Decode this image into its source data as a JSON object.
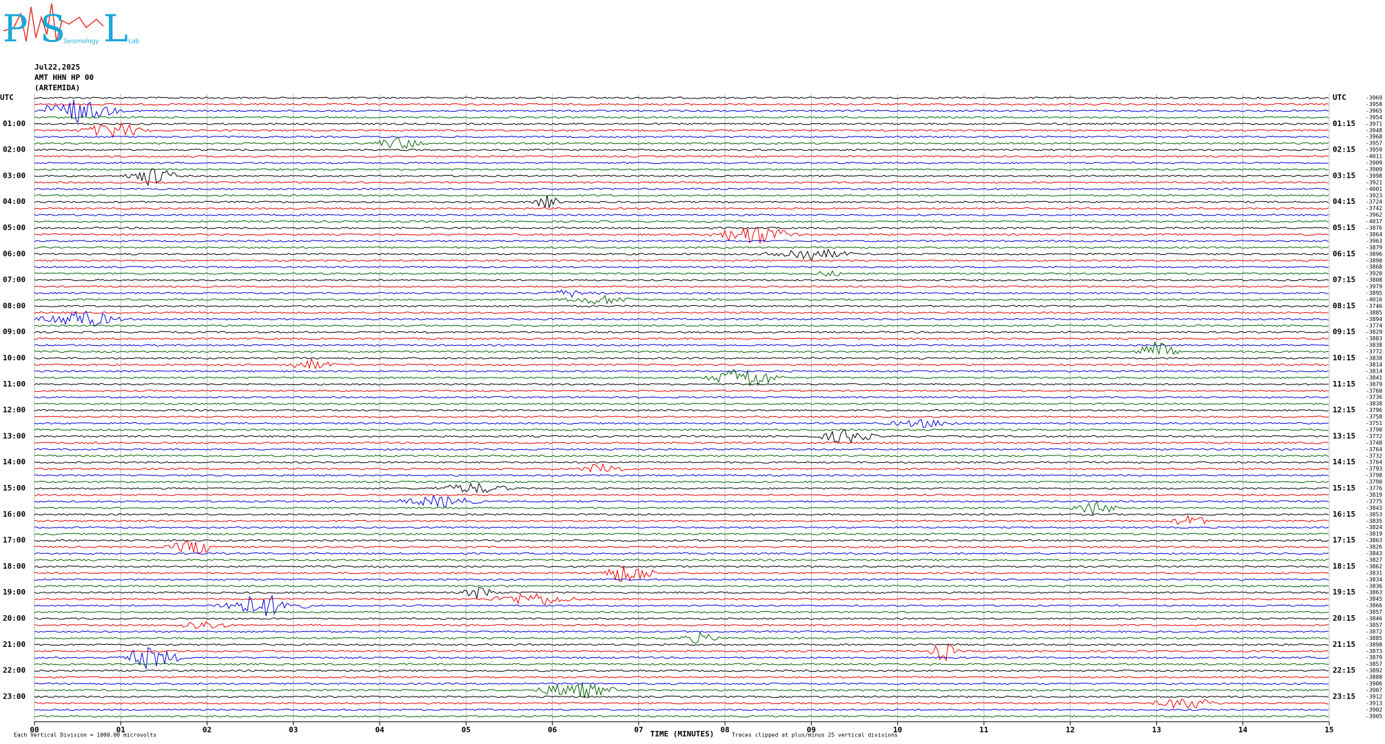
{
  "logo": {
    "letters": [
      "P",
      "S",
      "L"
    ],
    "words": [
      "Seismology",
      "Lab"
    ]
  },
  "header": {
    "date": "Jul22,2025",
    "station": "AMT HHN HP 00",
    "site": "(ARTEMIDA)"
  },
  "left_labels": [
    "UTC",
    "01:00",
    "02:00",
    "03:00",
    "04:00",
    "05:00",
    "06:00",
    "07:00",
    "08:00",
    "09:00",
    "10:00",
    "11:00",
    "12:00",
    "13:00",
    "14:00",
    "15:00",
    "16:00",
    "17:00",
    "18:00",
    "19:00",
    "20:00",
    "21:00",
    "22:00",
    "23:00"
  ],
  "right_labels": [
    "UTC",
    "01:15",
    "02:15",
    "03:15",
    "04:15",
    "05:15",
    "06:15",
    "07:15",
    "08:15",
    "09:15",
    "10:15",
    "11:15",
    "12:15",
    "13:15",
    "14:15",
    "15:15",
    "16:15",
    "17:15",
    "18:15",
    "19:15",
    "20:15",
    "21:15",
    "22:15",
    "23:15"
  ],
  "offsets": [
    -3969,
    -3958,
    -3965,
    -3954,
    -3971,
    -3948,
    -3968,
    -3957,
    -3959,
    -4011,
    -3909,
    -3909,
    -3998,
    -3921,
    -4001,
    -3923,
    -3724,
    -3742,
    -3962,
    -4017,
    -3876,
    -3864,
    -3963,
    -3879,
    -3896,
    -3890,
    -3868,
    -3920,
    -3808,
    -3979,
    -3895,
    -4016,
    -3746,
    -3885,
    -3894,
    -3774,
    -3829,
    -3883,
    -3838,
    -3772,
    -3838,
    -3814,
    -3814,
    -3841,
    -3879,
    -3760,
    -3736,
    -3838,
    -3796,
    -3758,
    -3751,
    -3790,
    -3772,
    -3748,
    -3764,
    -3732,
    -3764,
    -3793,
    -3798,
    -3790,
    -3776,
    -3819,
    -3775,
    -3843,
    -3853,
    -3835,
    -3824,
    -3819,
    -3863,
    -3826,
    -3843,
    -3827,
    -3862,
    -3831,
    -3834,
    -3836,
    -3863,
    -3845,
    -3866,
    -3857,
    -3846,
    -3857,
    -3872,
    -3885,
    -3898,
    -3873,
    -3879,
    -3857,
    -3892,
    -3888,
    -3906,
    -3907,
    -3912,
    -3913,
    -3902,
    -3905
  ],
  "x_axis": {
    "ticks": [
      "00",
      "01",
      "02",
      "03",
      "04",
      "05",
      "06",
      "07",
      "08",
      "09",
      "10",
      "11",
      "12",
      "13",
      "14",
      "15"
    ],
    "label": "TIME (MINUTES)"
  },
  "footer": {
    "scale": "Each Vertical Division = 1000.00 microvolts",
    "clip": "Traces clipped at plus/minus 25 vertical divisions"
  }
}
